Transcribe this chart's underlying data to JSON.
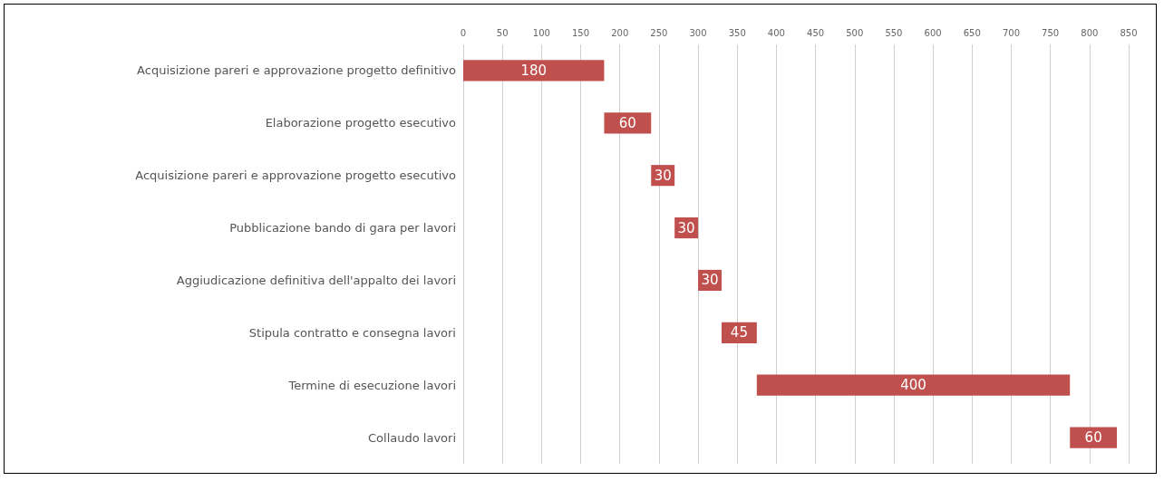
{
  "chart_data": {
    "type": "bar",
    "orientation": "horizontal",
    "categories": [
      "Acquisizione pareri e approvazione progetto definitivo",
      "Elaborazione progetto esecutivo",
      "Acquisizione pareri e approvazione progetto esecutivo",
      "Pubblicazione bando di gara per lavori",
      "Aggiudicazione definitiva dell'appalto dei lavori",
      "Stipula contratto e consegna lavori",
      "Termine di esecuzione lavori",
      "Collaudo lavori"
    ],
    "values": [
      180,
      60,
      30,
      30,
      30,
      45,
      400,
      60
    ],
    "base": [
      0,
      180,
      240,
      270,
      300,
      330,
      375,
      775
    ],
    "color": "#c0504d",
    "xlim": [
      0,
      850
    ],
    "xticks": [
      0,
      50,
      100,
      150,
      200,
      250,
      300,
      350,
      400,
      450,
      500,
      550,
      600,
      650,
      700,
      750,
      800,
      850
    ],
    "grid": "x",
    "data_labels": true
  }
}
